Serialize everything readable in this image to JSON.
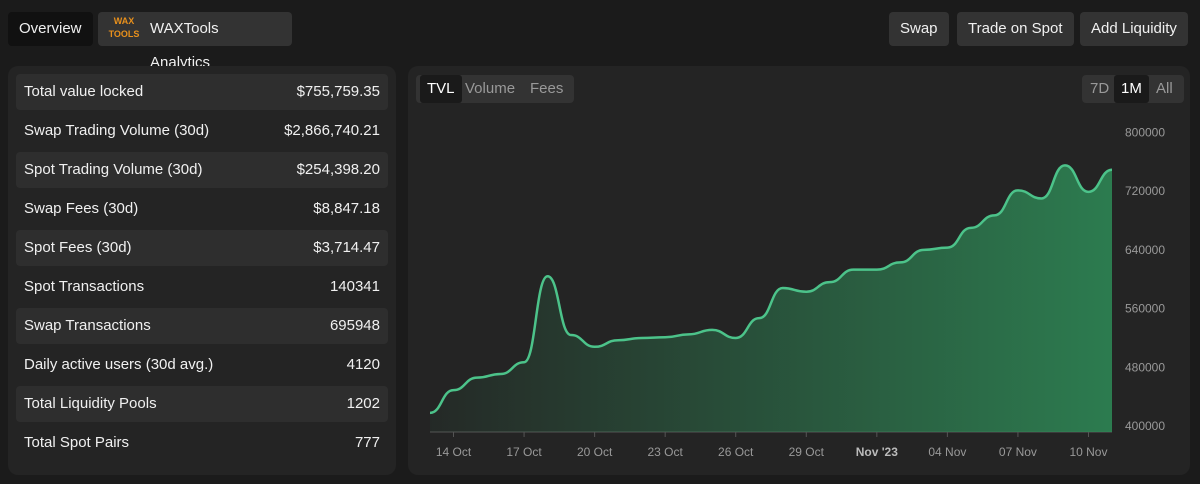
{
  "header": {
    "tab": "Overview",
    "logo": "WAX TOOLS",
    "app_name": "WAXTools Analytics",
    "buttons": [
      "Swap",
      "Trade on Spot",
      "Add Liquidity"
    ]
  },
  "stats": [
    [
      "Total value locked",
      "$755,759.35"
    ],
    [
      "Swap Trading Volume (30d)",
      "$2,866,740.21"
    ],
    [
      "Spot Trading Volume (30d)",
      "$254,398.20"
    ],
    [
      "Swap Fees (30d)",
      "$8,847.18"
    ],
    [
      "Spot Fees (30d)",
      "$3,714.47"
    ],
    [
      "Spot Transactions",
      "140341"
    ],
    [
      "Swap Transactions",
      "695948"
    ],
    [
      "Daily active users (30d avg.)",
      "4120"
    ],
    [
      "Total Liquidity Pools",
      "1202"
    ],
    [
      "Total Spot Pairs",
      "777"
    ]
  ],
  "metric_tabs": [
    "TVL",
    "Volume",
    "Fees"
  ],
  "range_tabs": [
    "7D",
    "1M",
    "All"
  ],
  "chart_data": {
    "type": "area",
    "x": [
      "2023-10-13",
      "2023-10-14",
      "2023-10-15",
      "2023-10-16",
      "2023-10-17",
      "2023-10-18",
      "2023-10-19",
      "2023-10-20",
      "2023-10-21",
      "2023-10-22",
      "2023-10-23",
      "2023-10-24",
      "2023-10-25",
      "2023-10-26",
      "2023-10-27",
      "2023-10-28",
      "2023-10-29",
      "2023-10-30",
      "2023-10-31",
      "2023-11-01",
      "2023-11-02",
      "2023-11-03",
      "2023-11-04",
      "2023-11-05",
      "2023-11-06",
      "2023-11-07",
      "2023-11-08",
      "2023-11-09",
      "2023-11-10",
      "2023-11-11"
    ],
    "series": [
      {
        "name": "TVL",
        "color": "#4cc38a",
        "values": [
          419000,
          450000,
          467000,
          472000,
          488000,
          605000,
          525000,
          509000,
          518000,
          521000,
          522000,
          526000,
          532000,
          521000,
          548000,
          589000,
          584000,
          597000,
          614000,
          614000,
          624000,
          641000,
          644000,
          671000,
          688000,
          722000,
          711000,
          756000,
          720000,
          750000
        ]
      }
    ],
    "xlim": [
      "2023-10-13",
      "2023-11-11"
    ],
    "xticks": [
      {
        "value": "2023-10-14",
        "label": "14 Oct"
      },
      {
        "value": "2023-10-17",
        "label": "17 Oct"
      },
      {
        "value": "2023-10-20",
        "label": "20 Oct"
      },
      {
        "value": "2023-10-23",
        "label": "23 Oct"
      },
      {
        "value": "2023-10-26",
        "label": "26 Oct"
      },
      {
        "value": "2023-10-29",
        "label": "29 Oct"
      },
      {
        "value": "2023-11-01",
        "label": "Nov '23"
      },
      {
        "value": "2023-11-04",
        "label": "04 Nov"
      },
      {
        "value": "2023-11-07",
        "label": "07 Nov"
      },
      {
        "value": "2023-11-10",
        "label": "10 Nov"
      }
    ],
    "ylim": [
      393000,
      811000
    ],
    "yticks": [
      400000,
      480000,
      560000,
      640000,
      720000,
      800000
    ]
  }
}
